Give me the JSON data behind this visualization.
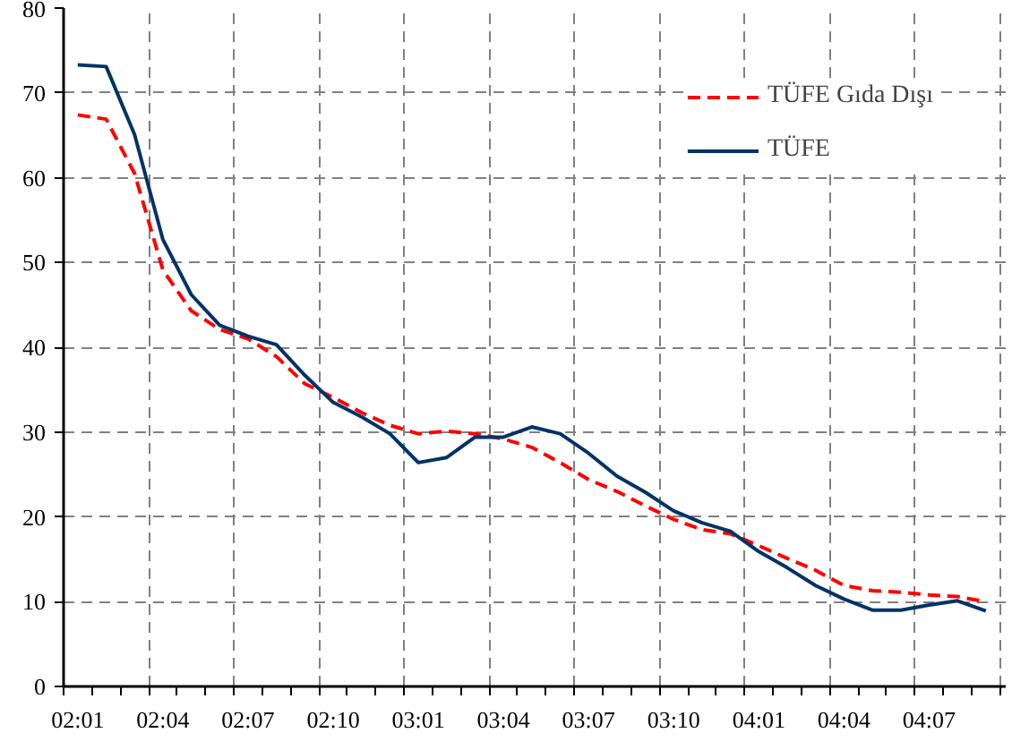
{
  "chart_data": {
    "type": "line",
    "categories": [
      "02:01",
      null,
      null,
      "02:04",
      null,
      null,
      "02:07",
      null,
      null,
      "02:10",
      null,
      null,
      "03:01",
      null,
      null,
      "03:04",
      null,
      null,
      "03:07",
      null,
      null,
      "03:10",
      null,
      null,
      "04:01",
      null,
      null,
      "04:04",
      null,
      null,
      "04:07",
      null,
      null
    ],
    "series": [
      {
        "name": "TÜFE Gıda Dışı",
        "color": "#ff0000",
        "line_style": "dashed",
        "values": [
          67.4,
          66.9,
          60.5,
          49.1,
          44.3,
          42.1,
          41.0,
          38.9,
          35.7,
          34.1,
          32.3,
          30.8,
          29.8,
          30.1,
          29.8,
          29.2,
          28.2,
          26.4,
          24.4,
          23.0,
          21.3,
          19.7,
          18.5,
          18.0,
          16.6,
          15.1,
          13.7,
          11.9,
          11.3,
          11.1,
          10.8,
          10.6,
          10.0
        ]
      },
      {
        "name": "TÜFE",
        "color": "#003366",
        "line_style": "solid",
        "values": [
          73.3,
          73.1,
          65.1,
          52.7,
          46.2,
          42.6,
          41.3,
          40.3,
          36.7,
          33.5,
          31.8,
          29.8,
          26.4,
          27.0,
          29.4,
          29.4,
          30.6,
          29.8,
          27.5,
          24.8,
          22.9,
          20.7,
          19.3,
          18.3,
          15.9,
          14.0,
          11.9,
          10.3,
          9.0,
          9.0,
          9.6,
          10.1,
          8.9
        ]
      }
    ],
    "ylim": [
      0,
      80
    ],
    "yticks": [
      0,
      10,
      20,
      30,
      40,
      50,
      60,
      70,
      80
    ],
    "grid": true,
    "legend": "top right"
  }
}
